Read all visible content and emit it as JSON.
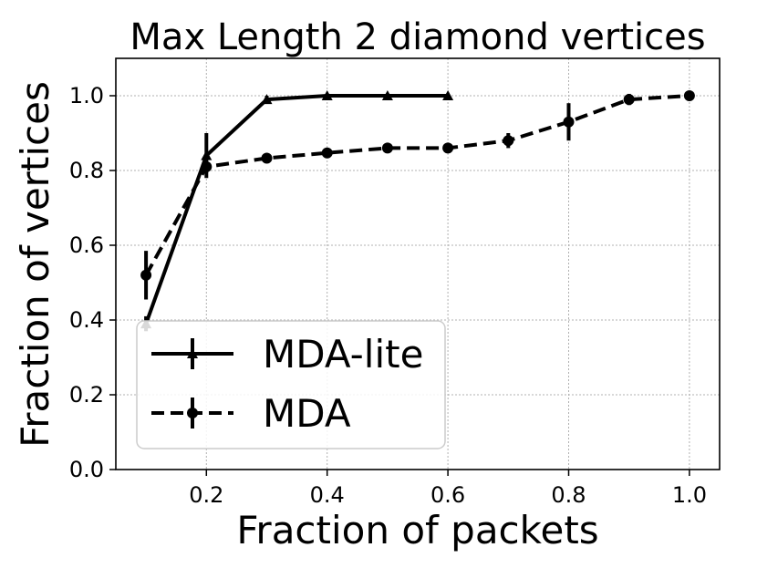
{
  "chart_data": {
    "type": "line",
    "title": "Max Length 2 diamond vertices",
    "xlabel": "Fraction of packets",
    "ylabel": "Fraction of vertices",
    "xlim": [
      0.05,
      1.05
    ],
    "ylim": [
      0.0,
      1.1
    ],
    "xticks": [
      0.2,
      0.4,
      0.6,
      0.8,
      1.0
    ],
    "xtick_labels": [
      "0.2",
      "0.4",
      "0.6",
      "0.8",
      "1.0"
    ],
    "yticks": [
      0.0,
      0.2,
      0.4,
      0.6,
      0.8,
      1.0
    ],
    "ytick_labels": [
      "0.0",
      "0.2",
      "0.4",
      "0.6",
      "0.8",
      "1.0"
    ],
    "grid": true,
    "legend_position": "lower-left",
    "series": [
      {
        "name": "MDA-lite",
        "line_style": "solid",
        "marker": "triangle",
        "color": "#000000",
        "x": [
          0.1,
          0.2,
          0.3,
          0.4,
          0.5,
          0.6
        ],
        "y": [
          0.39,
          0.84,
          0.99,
          1.0,
          1.0,
          1.0
        ],
        "yerr": [
          0.02,
          0.06,
          0.01,
          0.0,
          0.0,
          0.0
        ]
      },
      {
        "name": "MDA",
        "line_style": "dashed",
        "marker": "circle",
        "color": "#000000",
        "x": [
          0.1,
          0.2,
          0.3,
          0.4,
          0.5,
          0.6,
          0.7,
          0.8,
          0.9,
          1.0
        ],
        "y": [
          0.52,
          0.81,
          0.833,
          0.847,
          0.86,
          0.86,
          0.88,
          0.93,
          0.99,
          1.0
        ],
        "yerr": [
          0.065,
          0.015,
          0.0,
          0.0,
          0.0,
          0.0,
          0.02,
          0.05,
          0.015,
          0.0
        ]
      }
    ]
  }
}
